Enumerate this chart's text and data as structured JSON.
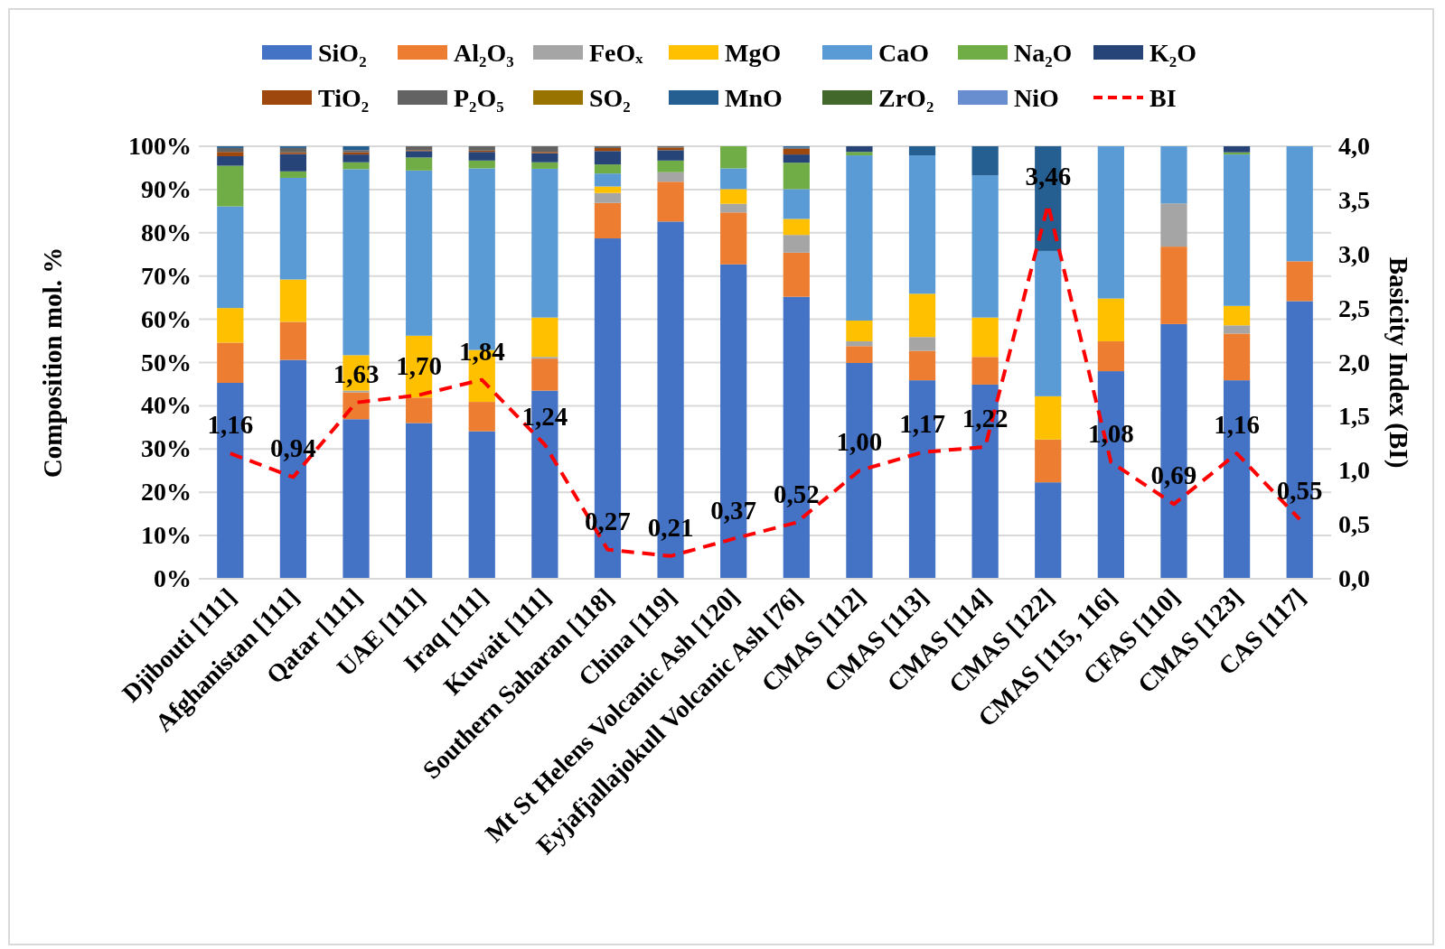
{
  "chart_data": {
    "type": "bar",
    "stacked": true,
    "ylabel": "Composition mol. %",
    "y2label": "Basicity Index (BI)",
    "categories": [
      "Djibouti [111]",
      "Afghanistan [111]",
      "Qatar [111]",
      "UAE [111]",
      "Iraq [111]",
      "Kuwait [111]",
      "Southern Saharan [118]",
      "China [119]",
      "Mt St Helens Volcanic Ash [120]",
      "Eyjafjallajokull Volcanic Ash [76]",
      "CMAS [112]",
      "CMAS [113]",
      "CMAS [114]",
      "CMAS [122]",
      "CMAS [115, 116]",
      "CFAS [110]",
      "CMAS [123]",
      "CAS [117]"
    ],
    "series": [
      {
        "name": "SiO₂",
        "color": "#4472c4",
        "values": [
          45.3,
          50.6,
          36.9,
          36.0,
          34.1,
          43.5,
          78.7,
          82.6,
          72.7,
          65.2,
          49.9,
          45.9,
          44.9,
          22.3,
          48.0,
          58.9,
          45.9,
          64.2
        ]
      },
      {
        "name": "Al₂O₃",
        "color": "#ed7d31",
        "values": [
          9.3,
          8.8,
          6.2,
          5.9,
          6.8,
          7.4,
          8.2,
          9.2,
          12.0,
          10.2,
          3.9,
          6.8,
          6.4,
          9.9,
          6.9,
          17.9,
          10.8,
          9.2
        ]
      },
      {
        "name": "FeOₓ",
        "color": "#a5a5a5",
        "values": [
          null,
          null,
          0.4,
          null,
          null,
          0.4,
          2.3,
          2.2,
          2.0,
          4.1,
          1.1,
          3.2,
          0,
          0,
          0,
          10.0,
          1.9,
          0
        ]
      },
      {
        "name": "MgO",
        "color": "#ffc000",
        "values": [
          8.0,
          9.8,
          8.2,
          14.3,
          12.0,
          9.1,
          1.5,
          0,
          3.4,
          3.7,
          4.8,
          10.0,
          9.1,
          10.0,
          9.9,
          0,
          4.5,
          0
        ]
      },
      {
        "name": "CaO",
        "color": "#5b9bd5",
        "values": [
          23.5,
          23.5,
          43.0,
          38.2,
          42.0,
          34.4,
          3.0,
          0,
          4.8,
          6.9,
          38.2,
          32.0,
          32.9,
          33.6,
          35.2,
          13.2,
          35.0,
          26.6
        ]
      },
      {
        "name": "Na₂O",
        "color": "#70ad47",
        "values": [
          9.4,
          1.5,
          1.6,
          3.0,
          1.8,
          1.5,
          2.1,
          2.7,
          5.1,
          6.1,
          0.8,
          0,
          0,
          0,
          0,
          0,
          0.5,
          0
        ]
      },
      {
        "name": "K₂O",
        "color": "#264478",
        "values": [
          2.2,
          4.0,
          1.8,
          1.5,
          2.0,
          2.1,
          3.1,
          2.4,
          0,
          1.9,
          1.3,
          0,
          0,
          0,
          0,
          0,
          1.4,
          0
        ]
      },
      {
        "name": "TiO₂",
        "color": "#9e480e",
        "values": [
          1.0,
          0.4,
          0.5,
          0.2,
          0.3,
          0.3,
          0.7,
          0.6,
          0,
          1.3,
          0,
          0,
          0,
          0,
          0,
          0,
          0,
          0
        ]
      },
      {
        "name": "P₂O₅",
        "color": "#636363",
        "values": [
          0.9,
          1.0,
          0.5,
          0.9,
          1.0,
          1.3,
          0.4,
          0.3,
          0,
          0.3,
          0,
          0,
          0,
          0,
          0,
          0,
          0,
          0
        ]
      },
      {
        "name": "SO₂",
        "color": "#997300",
        "values": [
          0,
          0,
          0,
          0,
          0,
          0,
          0,
          0,
          0,
          0,
          0,
          0,
          0,
          0,
          0,
          0,
          0,
          0
        ]
      },
      {
        "name": "MnO",
        "color": "#255e91",
        "values": [
          0.4,
          0.4,
          0.9,
          0,
          0,
          0,
          0,
          0,
          0,
          0.3,
          0,
          2.1,
          6.7,
          24.2,
          0,
          0,
          0,
          0
        ]
      },
      {
        "name": "ZrO₂",
        "color": "#43682b",
        "values": [
          0,
          0,
          0,
          0,
          0,
          0,
          0,
          0,
          0,
          0,
          0,
          0,
          0,
          0,
          0,
          0,
          0,
          0
        ]
      },
      {
        "name": "NiO",
        "color": "#698ed0",
        "values": [
          0,
          0,
          0,
          0,
          0,
          0,
          0,
          0,
          0,
          0,
          0,
          0,
          0,
          0,
          0,
          0,
          0,
          0
        ]
      },
      {
        "name": "BI",
        "type": "line",
        "axis": "y2",
        "color": "#ff0000",
        "line_style": "dashed",
        "marker": "none",
        "values": [
          1.16,
          0.94,
          1.63,
          1.7,
          1.84,
          1.24,
          0.27,
          0.21,
          0.37,
          0.52,
          1.0,
          1.17,
          1.22,
          3.46,
          1.08,
          0.69,
          1.16,
          0.55
        ],
        "value_labels": [
          "1,16",
          "0,94",
          "1,63",
          "1,70",
          "1,84",
          "1,24",
          "0,27",
          "0,21",
          "0,37",
          "0,52",
          "1,00",
          "1,17",
          "1,22",
          "3,46",
          "1,08",
          "0,69",
          "1,16",
          "0,55"
        ]
      }
    ],
    "ylim": [
      0,
      100
    ],
    "yticks": [
      {
        "value": 0,
        "label": "0%"
      },
      {
        "value": 10,
        "label": "10%"
      },
      {
        "value": 20,
        "label": "20%"
      },
      {
        "value": 30,
        "label": "30%"
      },
      {
        "value": 40,
        "label": "40%"
      },
      {
        "value": 50,
        "label": "50%"
      },
      {
        "value": 60,
        "label": "60%"
      },
      {
        "value": 70,
        "label": "70%"
      },
      {
        "value": 80,
        "label": "80%"
      },
      {
        "value": 90,
        "label": "90%"
      },
      {
        "value": 100,
        "label": "100%"
      }
    ],
    "y2lim": [
      0,
      4
    ],
    "y2ticks": [
      {
        "value": 0,
        "label": "0,0"
      },
      {
        "value": 0.5,
        "label": "0,5"
      },
      {
        "value": 1,
        "label": "1,0"
      },
      {
        "value": 1.5,
        "label": "1,5"
      },
      {
        "value": 2,
        "label": "2,0"
      },
      {
        "value": 2.5,
        "label": "2,5"
      },
      {
        "value": 3,
        "label": "3,0"
      },
      {
        "value": 3.5,
        "label": "3,5"
      },
      {
        "value": 4,
        "label": "4,0"
      }
    ],
    "grid": "y",
    "legend": "top"
  }
}
